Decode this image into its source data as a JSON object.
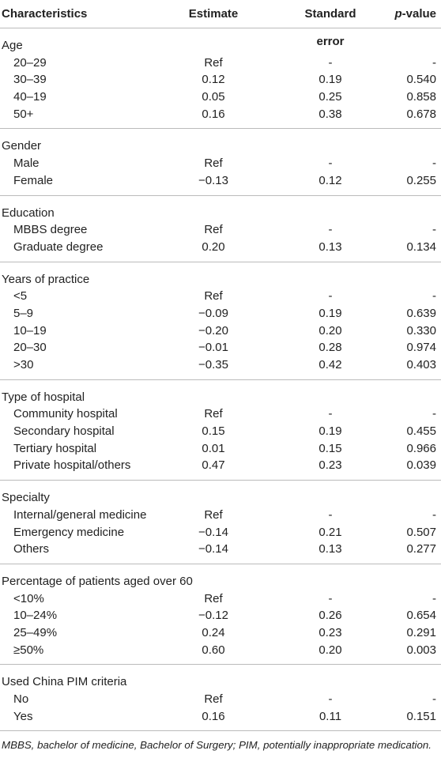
{
  "header": {
    "characteristics": "Characteristics",
    "estimate": "Estimate",
    "standard_error": "Standard error",
    "p_value": {
      "italic": "p",
      "rest": "-value"
    }
  },
  "groups": [
    {
      "title": "Age",
      "rows": [
        [
          "20–29",
          "Ref",
          "-",
          "-"
        ],
        [
          "30–39",
          "0.12",
          "0.19",
          "0.540"
        ],
        [
          "40–19",
          "0.05",
          "0.25",
          "0.858"
        ],
        [
          "50+",
          "0.16",
          "0.38",
          "0.678"
        ]
      ]
    },
    {
      "title": "Gender",
      "rows": [
        [
          "Male",
          "Ref",
          "-",
          "-"
        ],
        [
          "Female",
          "−0.13",
          "0.12",
          "0.255"
        ]
      ]
    },
    {
      "title": "Education",
      "rows": [
        [
          "MBBS degree",
          "Ref",
          "-",
          "-"
        ],
        [
          "Graduate degree",
          "0.20",
          "0.13",
          "0.134"
        ]
      ]
    },
    {
      "title": "Years of practice",
      "rows": [
        [
          "<5",
          "Ref",
          "-",
          "-"
        ],
        [
          "5–9",
          "−0.09",
          "0.19",
          "0.639"
        ],
        [
          "10–19",
          "−0.20",
          "0.20",
          "0.330"
        ],
        [
          "20–30",
          "−0.01",
          "0.28",
          "0.974"
        ],
        [
          ">30",
          "−0.35",
          "0.42",
          "0.403"
        ]
      ]
    },
    {
      "title": "Type of hospital",
      "rows": [
        [
          "Community hospital",
          "Ref",
          "-",
          "-"
        ],
        [
          "Secondary hospital",
          "0.15",
          "0.19",
          "0.455"
        ],
        [
          "Tertiary hospital",
          "0.01",
          "0.15",
          "0.966"
        ],
        [
          "Private hospital/others",
          "0.47",
          "0.23",
          "0.039"
        ]
      ]
    },
    {
      "title": "Specialty",
      "rows": [
        [
          "Internal/general medicine",
          "Ref",
          "-",
          "-"
        ],
        [
          "Emergency medicine",
          "−0.14",
          "0.21",
          "0.507"
        ],
        [
          "Others",
          "−0.14",
          "0.13",
          "0.277"
        ]
      ]
    },
    {
      "title": "Percentage of patients aged over 60",
      "rows": [
        [
          "<10%",
          "Ref",
          "-",
          "-"
        ],
        [
          "10–24%",
          "−0.12",
          "0.26",
          "0.654"
        ],
        [
          "25–49%",
          "0.24",
          "0.23",
          "0.291"
        ],
        [
          "≥50%",
          "0.60",
          "0.20",
          "0.003"
        ]
      ]
    },
    {
      "title": "Used China PIM criteria",
      "rows": [
        [
          "No",
          "Ref",
          "-",
          "-"
        ],
        [
          "Yes",
          "0.16",
          "0.11",
          "0.151"
        ]
      ]
    }
  ],
  "footnote": "MBBS, bachelor of medicine, Bachelor of Surgery; PIM, potentially inappropriate medication."
}
